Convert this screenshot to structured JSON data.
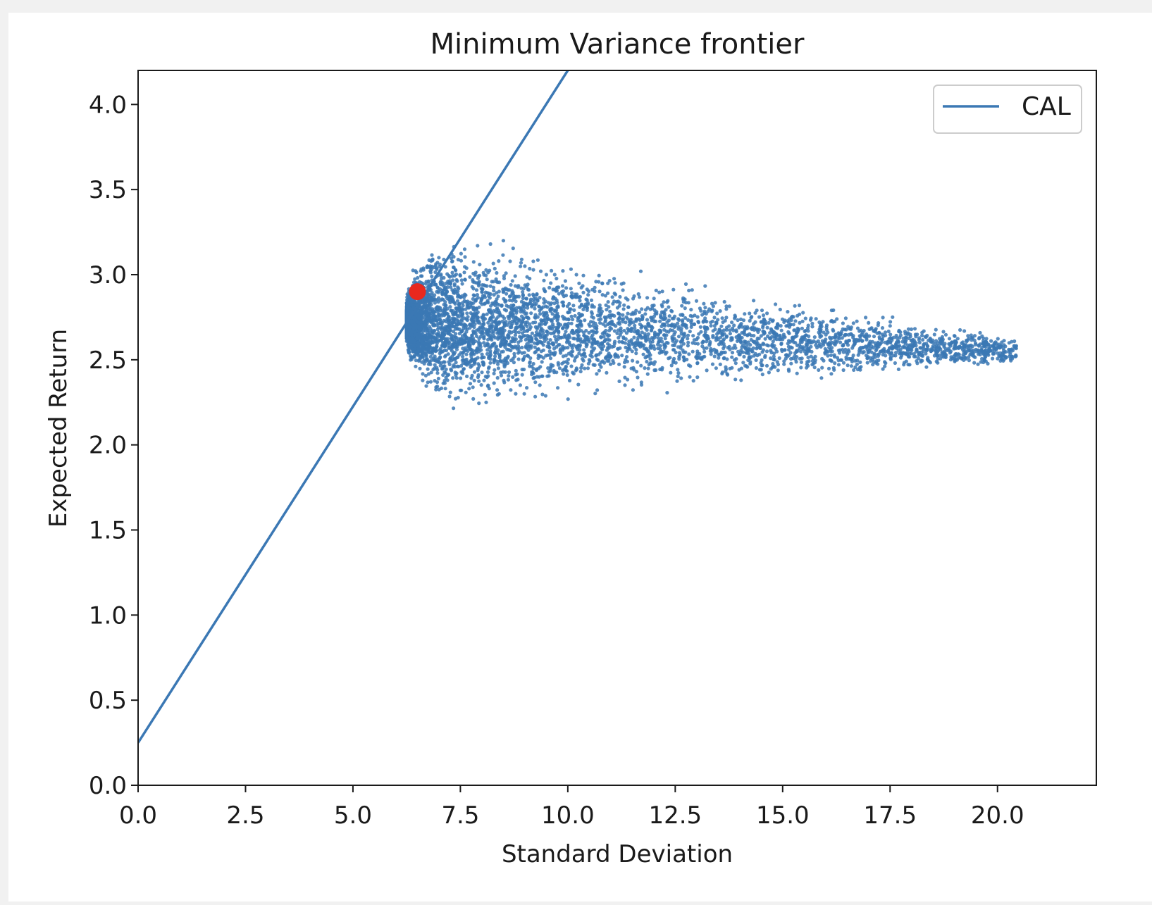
{
  "chart_data": {
    "type": "scatter",
    "title": "Minimum Variance frontier",
    "xlabel": "Standard Deviation",
    "ylabel": "Expected Return",
    "xlim": [
      0,
      22.3
    ],
    "ylim": [
      0,
      4.2
    ],
    "x_ticks": [
      "0.0",
      "2.5",
      "5.0",
      "7.5",
      "10.0",
      "12.5",
      "15.0",
      "17.5",
      "20.0"
    ],
    "y_ticks": [
      "0.0",
      "0.5",
      "1.0",
      "1.5",
      "2.0",
      "2.5",
      "3.0",
      "3.5",
      "4.0"
    ],
    "grid": false,
    "legend": {
      "placement": "top-right",
      "entries": [
        "CAL"
      ]
    },
    "colors": {
      "series": "#3b78b4",
      "highlight": "#e8281e"
    },
    "series": [
      {
        "name": "CAL",
        "kind": "line",
        "x": [
          0,
          10.0
        ],
        "y": [
          0.25,
          4.2
        ]
      },
      {
        "kind": "scatter",
        "description": "simulated random portfolios; sample of representative points",
        "x": [
          6.3,
          6.5,
          6.8,
          7.0,
          7.3,
          7.6,
          7.9,
          8.2,
          8.5,
          6.6,
          6.9,
          7.2,
          7.5,
          7.8,
          8.1,
          8.4,
          8.8,
          9.2,
          9.6,
          10.0,
          10.5,
          11.0,
          11.5,
          12.0,
          12.5,
          13.0,
          13.5,
          14.0,
          14.5,
          15.0,
          15.5,
          16.0,
          16.5,
          17.0,
          17.5,
          18.0,
          18.5,
          19.0,
          19.5,
          20.3,
          7.2,
          7.6,
          8.0,
          7.4,
          7.8,
          8.0,
          9.0,
          9.5,
          10.2,
          10.8,
          11.3,
          11.7
        ],
        "y": [
          2.75,
          2.95,
          3.05,
          3.1,
          3.12,
          3.15,
          3.17,
          3.18,
          3.2,
          2.55,
          2.45,
          2.38,
          2.32,
          2.27,
          2.25,
          2.3,
          2.38,
          2.42,
          2.45,
          2.48,
          2.5,
          2.52,
          2.55,
          2.58,
          2.6,
          2.62,
          2.62,
          2.63,
          2.64,
          2.62,
          2.63,
          2.62,
          2.6,
          2.58,
          2.57,
          2.57,
          2.58,
          2.57,
          2.55,
          2.53,
          2.8,
          2.7,
          2.9,
          2.6,
          2.5,
          2.75,
          3.05,
          3.0,
          3.0,
          2.95,
          2.95,
          3.02
        ]
      }
    ],
    "highlight_point": {
      "x": 6.5,
      "y": 2.9
    }
  }
}
